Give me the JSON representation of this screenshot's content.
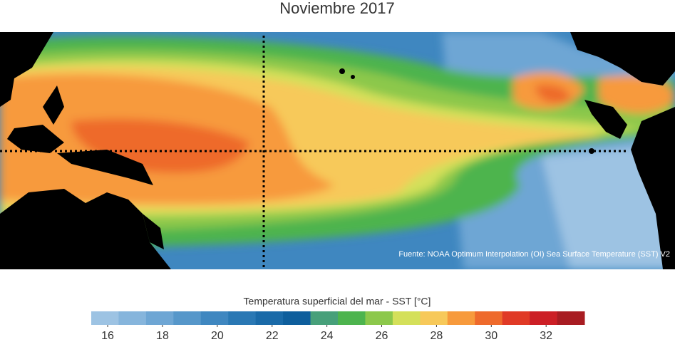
{
  "title": "Noviembre 2017",
  "source": "Fuente: NOAA Optimum Interpolation (OI) Sea Surface Temperature (SST) V2",
  "colorbar": {
    "label": "Temperatura superficial del mar - SST  [°C]",
    "lim": [
      15.4,
      33.4
    ],
    "colors": [
      "#9dc3e3",
      "#86b5dc",
      "#6ea6d4",
      "#5697ca",
      "#3f87c0",
      "#2a78b4",
      "#1a6aa8",
      "#0e5e9c",
      "#47a07a",
      "#4db44e",
      "#8cc84b",
      "#d4e05a",
      "#f7c95a",
      "#f79a3c",
      "#ee6a2c",
      "#e03a26",
      "#cc1f26",
      "#a81c22"
    ],
    "ticks": [
      16,
      18,
      20,
      22,
      24,
      26,
      28,
      30,
      32
    ]
  }
}
